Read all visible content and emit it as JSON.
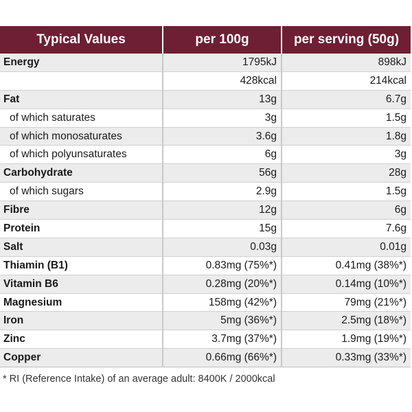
{
  "header": {
    "col1": "Typical Values",
    "col2": "per 100g",
    "col3": "per serving (50g)"
  },
  "rows": [
    {
      "label": "Energy",
      "per100": "1795kJ",
      "serving": "898kJ"
    },
    {
      "label": "",
      "per100": "428kcal",
      "serving": "214kcal"
    },
    {
      "label": "Fat",
      "per100": "13g",
      "serving": "6.7g"
    },
    {
      "label": "of which saturates",
      "per100": "3g",
      "serving": "1.5g"
    },
    {
      "label": "of which monosaturates",
      "per100": "3.6g",
      "serving": "1.8g"
    },
    {
      "label": "of which polyunsaturates",
      "per100": "6g",
      "serving": "3g"
    },
    {
      "label": "Carbohydrate",
      "per100": "56g",
      "serving": "28g"
    },
    {
      "label": "of which sugars",
      "per100": "2.9g",
      "serving": "1.5g"
    },
    {
      "label": "Fibre",
      "per100": "12g",
      "serving": "6g"
    },
    {
      "label": "Protein",
      "per100": "15g",
      "serving": "7.6g"
    },
    {
      "label": "Salt",
      "per100": "0.03g",
      "serving": "0.01g"
    },
    {
      "label": "Thiamin (B1)",
      "per100": "0.83mg (75%*)",
      "serving": "0.41mg (38%*)"
    },
    {
      "label": "Vitamin B6",
      "per100": "0.28mg (20%*)",
      "serving": "0.14mg (10%*)"
    },
    {
      "label": "Magnesium",
      "per100": "158mg (42%*)",
      "serving": "79mg (21%*)"
    },
    {
      "label": "Iron",
      "per100": "5mg (36%*)",
      "serving": "2.5mg (18%*)"
    },
    {
      "label": "Zinc",
      "per100": "3.7mg (37%*)",
      "serving": "1.9mg (19%*)"
    },
    {
      "label": "Copper",
      "per100": "0.66mg (66%*)",
      "serving": "0.33mg (33%*)"
    }
  ],
  "footnote": "* RI (Reference Intake) of an average adult: 8400K / 2000kcal",
  "colors": {
    "header_bg": "#6e1f33",
    "header_text": "#ffffff",
    "row_shade": "#ececec"
  }
}
